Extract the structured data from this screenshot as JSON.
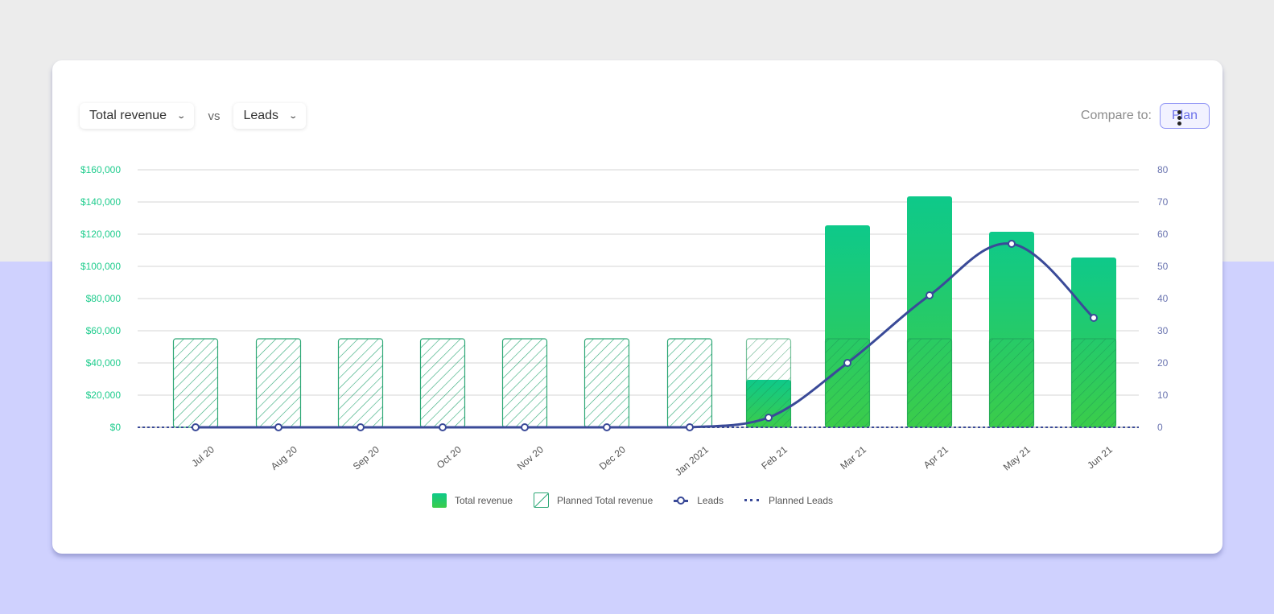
{
  "header": {
    "metric_select": "Total revenue",
    "vs_label": "vs",
    "compare_metric_select": "Leads",
    "compare_to_label": "Compare to:",
    "plan_button": "Plan",
    "more_menu_icon": "kebab-vertical-icon"
  },
  "colors": {
    "revenue_gradient_top": "#0ec98a",
    "revenue_gradient_bottom": "#3bcc4a",
    "planned_hatch": "#2ea876",
    "leads_line": "#3a4a98",
    "left_axis_text": "#1fcc8d",
    "right_axis_text": "#6a74b0",
    "plan_button_border": "#8e93f5",
    "page_bg_top": "#ececec",
    "page_bg_bottom": "#cfd1fe"
  },
  "legend": [
    {
      "label": "Total revenue",
      "swatch": "solid-gradient"
    },
    {
      "label": "Planned Total revenue",
      "swatch": "hatched"
    },
    {
      "label": "Leads",
      "swatch": "line-with-marker"
    },
    {
      "label": "Planned Leads",
      "swatch": "dotted-line"
    }
  ],
  "chart_data": {
    "type": "bar",
    "title": "Total revenue vs Leads",
    "categories": [
      "Jul 20",
      "Aug 20",
      "Sep 20",
      "Oct 20",
      "Nov 20",
      "Dec 20",
      "Jan 2021",
      "Feb 21",
      "Mar 21",
      "Apr 21",
      "May 21",
      "Jun 21"
    ],
    "series": [
      {
        "name": "Total revenue",
        "type": "bar",
        "axis": "left",
        "values": [
          0,
          0,
          0,
          0,
          0,
          0,
          0,
          29500,
          125500,
          143500,
          121500,
          105500
        ]
      },
      {
        "name": "Planned Total revenue",
        "type": "bar-hatched",
        "axis": "left",
        "values": [
          55000,
          55000,
          55000,
          55000,
          55000,
          55000,
          55000,
          55000,
          55000,
          55000,
          55000,
          55000
        ]
      },
      {
        "name": "Leads",
        "type": "line",
        "axis": "right",
        "values": [
          0,
          0,
          0,
          0,
          0,
          0,
          0,
          3,
          20,
          41,
          57,
          34
        ]
      },
      {
        "name": "Planned Leads",
        "type": "line-dotted",
        "axis": "right",
        "values": [
          0,
          0,
          0,
          0,
          0,
          0,
          0,
          0,
          0,
          0,
          0,
          0
        ]
      }
    ],
    "left_axis": {
      "ticks": [
        "$0",
        "$20,000",
        "$40,000",
        "$60,000",
        "$80,000",
        "$100,000",
        "$120,000",
        "$140,000",
        "$160,000"
      ],
      "ylim": [
        0,
        160000
      ]
    },
    "right_axis": {
      "ticks": [
        "0",
        "10",
        "20",
        "30",
        "40",
        "50",
        "60",
        "70",
        "80"
      ],
      "ylim": [
        0,
        80
      ]
    },
    "xlabel": "",
    "ylabel": "",
    "grid": true,
    "legend_position": "bottom"
  }
}
